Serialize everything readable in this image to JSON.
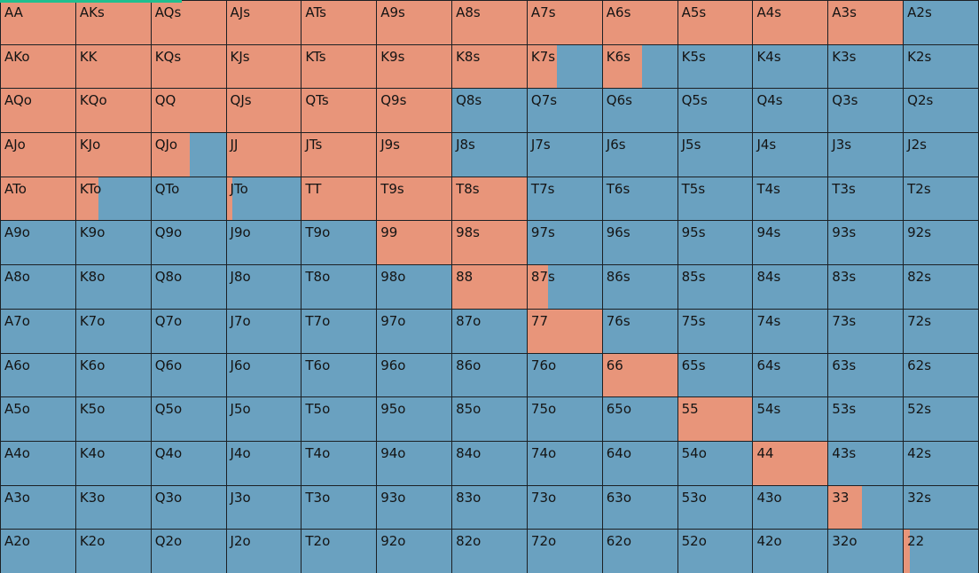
{
  "colors": {
    "raise": "#e8957a",
    "fold": "#6aa1c0",
    "accent": "#1fbf8f"
  },
  "grid": {
    "rows": [
      [
        {
          "hand": "AA",
          "raise": 1
        },
        {
          "hand": "AKs",
          "raise": 1
        },
        {
          "hand": "AQs",
          "raise": 1
        },
        {
          "hand": "AJs",
          "raise": 1
        },
        {
          "hand": "ATs",
          "raise": 1
        },
        {
          "hand": "A9s",
          "raise": 1
        },
        {
          "hand": "A8s",
          "raise": 1
        },
        {
          "hand": "A7s",
          "raise": 1
        },
        {
          "hand": "A6s",
          "raise": 1
        },
        {
          "hand": "A5s",
          "raise": 1
        },
        {
          "hand": "A4s",
          "raise": 1
        },
        {
          "hand": "A3s",
          "raise": 1
        },
        {
          "hand": "A2s",
          "raise": 0
        }
      ],
      [
        {
          "hand": "AKo",
          "raise": 1
        },
        {
          "hand": "KK",
          "raise": 1
        },
        {
          "hand": "KQs",
          "raise": 1
        },
        {
          "hand": "KJs",
          "raise": 1
        },
        {
          "hand": "KTs",
          "raise": 1
        },
        {
          "hand": "K9s",
          "raise": 1
        },
        {
          "hand": "K8s",
          "raise": 1
        },
        {
          "hand": "K7s",
          "raise": 0.4
        },
        {
          "hand": "K6s",
          "raise": 0.53
        },
        {
          "hand": "K5s",
          "raise": 0
        },
        {
          "hand": "K4s",
          "raise": 0
        },
        {
          "hand": "K3s",
          "raise": 0
        },
        {
          "hand": "K2s",
          "raise": 0
        }
      ],
      [
        {
          "hand": "AQo",
          "raise": 1
        },
        {
          "hand": "KQo",
          "raise": 1
        },
        {
          "hand": "QQ",
          "raise": 1
        },
        {
          "hand": "QJs",
          "raise": 1
        },
        {
          "hand": "QTs",
          "raise": 1
        },
        {
          "hand": "Q9s",
          "raise": 1
        },
        {
          "hand": "Q8s",
          "raise": 0
        },
        {
          "hand": "Q7s",
          "raise": 0
        },
        {
          "hand": "Q6s",
          "raise": 0
        },
        {
          "hand": "Q5s",
          "raise": 0
        },
        {
          "hand": "Q4s",
          "raise": 0
        },
        {
          "hand": "Q3s",
          "raise": 0
        },
        {
          "hand": "Q2s",
          "raise": 0
        }
      ],
      [
        {
          "hand": "AJo",
          "raise": 1
        },
        {
          "hand": "KJo",
          "raise": 1
        },
        {
          "hand": "QJo",
          "raise": 0.52
        },
        {
          "hand": "JJ",
          "raise": 1
        },
        {
          "hand": "JTs",
          "raise": 1
        },
        {
          "hand": "J9s",
          "raise": 1
        },
        {
          "hand": "J8s",
          "raise": 0
        },
        {
          "hand": "J7s",
          "raise": 0
        },
        {
          "hand": "J6s",
          "raise": 0
        },
        {
          "hand": "J5s",
          "raise": 0
        },
        {
          "hand": "J4s",
          "raise": 0
        },
        {
          "hand": "J3s",
          "raise": 0
        },
        {
          "hand": "J2s",
          "raise": 0
        }
      ],
      [
        {
          "hand": "ATo",
          "raise": 1
        },
        {
          "hand": "KTo",
          "raise": 0.3
        },
        {
          "hand": "QTo",
          "raise": 0
        },
        {
          "hand": "JTo",
          "raise": 0.08
        },
        {
          "hand": "TT",
          "raise": 1
        },
        {
          "hand": "T9s",
          "raise": 1
        },
        {
          "hand": "T8s",
          "raise": 1
        },
        {
          "hand": "T7s",
          "raise": 0
        },
        {
          "hand": "T6s",
          "raise": 0
        },
        {
          "hand": "T5s",
          "raise": 0
        },
        {
          "hand": "T4s",
          "raise": 0
        },
        {
          "hand": "T3s",
          "raise": 0
        },
        {
          "hand": "T2s",
          "raise": 0
        }
      ],
      [
        {
          "hand": "A9o",
          "raise": 0
        },
        {
          "hand": "K9o",
          "raise": 0
        },
        {
          "hand": "Q9o",
          "raise": 0
        },
        {
          "hand": "J9o",
          "raise": 0
        },
        {
          "hand": "T9o",
          "raise": 0
        },
        {
          "hand": "99",
          "raise": 1
        },
        {
          "hand": "98s",
          "raise": 1
        },
        {
          "hand": "97s",
          "raise": 0
        },
        {
          "hand": "96s",
          "raise": 0
        },
        {
          "hand": "95s",
          "raise": 0
        },
        {
          "hand": "94s",
          "raise": 0
        },
        {
          "hand": "93s",
          "raise": 0
        },
        {
          "hand": "92s",
          "raise": 0
        }
      ],
      [
        {
          "hand": "A8o",
          "raise": 0
        },
        {
          "hand": "K8o",
          "raise": 0
        },
        {
          "hand": "Q8o",
          "raise": 0
        },
        {
          "hand": "J8o",
          "raise": 0
        },
        {
          "hand": "T8o",
          "raise": 0
        },
        {
          "hand": "98o",
          "raise": 0
        },
        {
          "hand": "88",
          "raise": 1
        },
        {
          "hand": "87s",
          "raise": 0.27
        },
        {
          "hand": "86s",
          "raise": 0
        },
        {
          "hand": "85s",
          "raise": 0
        },
        {
          "hand": "84s",
          "raise": 0
        },
        {
          "hand": "83s",
          "raise": 0
        },
        {
          "hand": "82s",
          "raise": 0
        }
      ],
      [
        {
          "hand": "A7o",
          "raise": 0
        },
        {
          "hand": "K7o",
          "raise": 0
        },
        {
          "hand": "Q7o",
          "raise": 0
        },
        {
          "hand": "J7o",
          "raise": 0
        },
        {
          "hand": "T7o",
          "raise": 0
        },
        {
          "hand": "97o",
          "raise": 0
        },
        {
          "hand": "87o",
          "raise": 0
        },
        {
          "hand": "77",
          "raise": 1
        },
        {
          "hand": "76s",
          "raise": 0
        },
        {
          "hand": "75s",
          "raise": 0
        },
        {
          "hand": "74s",
          "raise": 0
        },
        {
          "hand": "73s",
          "raise": 0
        },
        {
          "hand": "72s",
          "raise": 0
        }
      ],
      [
        {
          "hand": "A6o",
          "raise": 0
        },
        {
          "hand": "K6o",
          "raise": 0
        },
        {
          "hand": "Q6o",
          "raise": 0
        },
        {
          "hand": "J6o",
          "raise": 0
        },
        {
          "hand": "T6o",
          "raise": 0
        },
        {
          "hand": "96o",
          "raise": 0
        },
        {
          "hand": "86o",
          "raise": 0
        },
        {
          "hand": "76o",
          "raise": 0
        },
        {
          "hand": "66",
          "raise": 1
        },
        {
          "hand": "65s",
          "raise": 0
        },
        {
          "hand": "64s",
          "raise": 0
        },
        {
          "hand": "63s",
          "raise": 0
        },
        {
          "hand": "62s",
          "raise": 0
        }
      ],
      [
        {
          "hand": "A5o",
          "raise": 0
        },
        {
          "hand": "K5o",
          "raise": 0
        },
        {
          "hand": "Q5o",
          "raise": 0
        },
        {
          "hand": "J5o",
          "raise": 0
        },
        {
          "hand": "T5o",
          "raise": 0
        },
        {
          "hand": "95o",
          "raise": 0
        },
        {
          "hand": "85o",
          "raise": 0
        },
        {
          "hand": "75o",
          "raise": 0
        },
        {
          "hand": "65o",
          "raise": 0
        },
        {
          "hand": "55",
          "raise": 1
        },
        {
          "hand": "54s",
          "raise": 0
        },
        {
          "hand": "53s",
          "raise": 0
        },
        {
          "hand": "52s",
          "raise": 0
        }
      ],
      [
        {
          "hand": "A4o",
          "raise": 0
        },
        {
          "hand": "K4o",
          "raise": 0
        },
        {
          "hand": "Q4o",
          "raise": 0
        },
        {
          "hand": "J4o",
          "raise": 0
        },
        {
          "hand": "T4o",
          "raise": 0
        },
        {
          "hand": "94o",
          "raise": 0
        },
        {
          "hand": "84o",
          "raise": 0
        },
        {
          "hand": "74o",
          "raise": 0
        },
        {
          "hand": "64o",
          "raise": 0
        },
        {
          "hand": "54o",
          "raise": 0
        },
        {
          "hand": "44",
          "raise": 1
        },
        {
          "hand": "43s",
          "raise": 0
        },
        {
          "hand": "42s",
          "raise": 0
        }
      ],
      [
        {
          "hand": "A3o",
          "raise": 0
        },
        {
          "hand": "K3o",
          "raise": 0
        },
        {
          "hand": "Q3o",
          "raise": 0
        },
        {
          "hand": "J3o",
          "raise": 0
        },
        {
          "hand": "T3o",
          "raise": 0
        },
        {
          "hand": "93o",
          "raise": 0
        },
        {
          "hand": "83o",
          "raise": 0
        },
        {
          "hand": "73o",
          "raise": 0
        },
        {
          "hand": "63o",
          "raise": 0
        },
        {
          "hand": "53o",
          "raise": 0
        },
        {
          "hand": "43o",
          "raise": 0
        },
        {
          "hand": "33",
          "raise": 0.45
        },
        {
          "hand": "32s",
          "raise": 0
        }
      ],
      [
        {
          "hand": "A2o",
          "raise": 0
        },
        {
          "hand": "K2o",
          "raise": 0
        },
        {
          "hand": "Q2o",
          "raise": 0
        },
        {
          "hand": "J2o",
          "raise": 0
        },
        {
          "hand": "T2o",
          "raise": 0
        },
        {
          "hand": "92o",
          "raise": 0
        },
        {
          "hand": "82o",
          "raise": 0
        },
        {
          "hand": "72o",
          "raise": 0
        },
        {
          "hand": "62o",
          "raise": 0
        },
        {
          "hand": "52o",
          "raise": 0
        },
        {
          "hand": "42o",
          "raise": 0
        },
        {
          "hand": "32o",
          "raise": 0
        },
        {
          "hand": "22",
          "raise": 0.08
        }
      ]
    ]
  }
}
